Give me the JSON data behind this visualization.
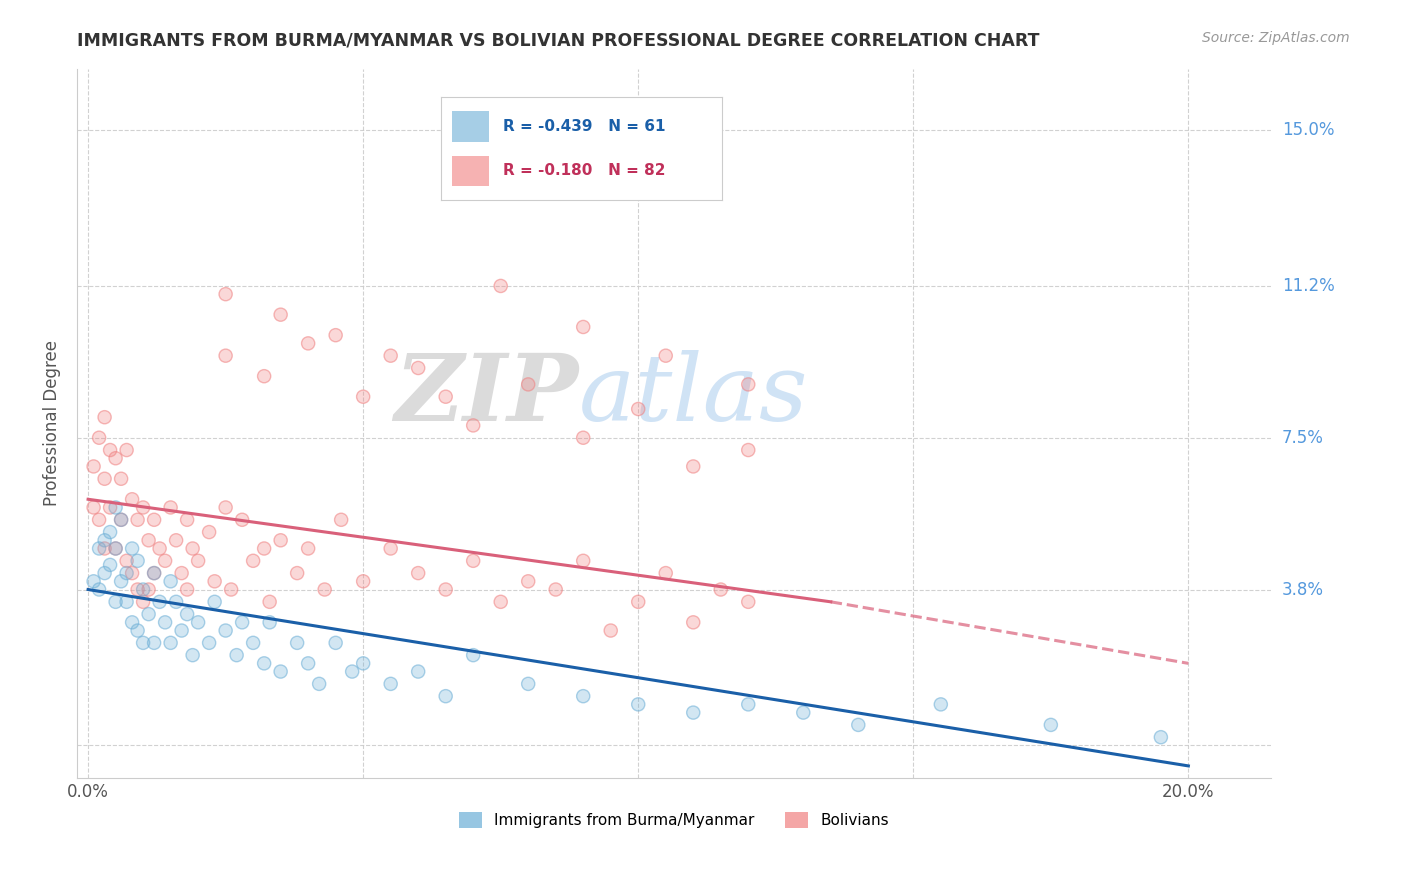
{
  "title": "IMMIGRANTS FROM BURMA/MYANMAR VS BOLIVIAN PROFESSIONAL DEGREE CORRELATION CHART",
  "source": "Source: ZipAtlas.com",
  "ylabel": "Professional Degree",
  "legend_entries": [
    {
      "label": "R = -0.439   N = 61",
      "color": "#6baed6"
    },
    {
      "label": "R = -0.180   N = 82",
      "color": "#f08080"
    }
  ],
  "xlim": [
    -0.002,
    0.215
  ],
  "ylim": [
    -0.008,
    0.165
  ],
  "blue_color": "#6baed6",
  "pink_color": "#f08080",
  "blue_line_color": "#1a5fa8",
  "pink_line_color": "#d9607a",
  "grid_color": "#cccccc",
  "background_color": "#ffffff",
  "right_label_color": "#5599dd",
  "blue_trend": {
    "x_start": 0.0,
    "x_end": 0.2,
    "y_start": 0.038,
    "y_end": -0.005
  },
  "pink_trend_solid": {
    "x_start": 0.0,
    "x_end": 0.135,
    "y_start": 0.06,
    "y_end": 0.035
  },
  "pink_trend_dash": {
    "x_start": 0.135,
    "x_end": 0.2,
    "y_start": 0.035,
    "y_end": 0.02
  },
  "scatter_blue_x": [
    0.001,
    0.002,
    0.002,
    0.003,
    0.003,
    0.004,
    0.004,
    0.005,
    0.005,
    0.005,
    0.006,
    0.006,
    0.007,
    0.007,
    0.008,
    0.008,
    0.009,
    0.009,
    0.01,
    0.01,
    0.011,
    0.012,
    0.012,
    0.013,
    0.014,
    0.015,
    0.015,
    0.016,
    0.017,
    0.018,
    0.019,
    0.02,
    0.022,
    0.023,
    0.025,
    0.027,
    0.028,
    0.03,
    0.032,
    0.033,
    0.035,
    0.038,
    0.04,
    0.042,
    0.045,
    0.048,
    0.05,
    0.055,
    0.06,
    0.065,
    0.07,
    0.08,
    0.09,
    0.1,
    0.11,
    0.12,
    0.13,
    0.14,
    0.155,
    0.175,
    0.195
  ],
  "scatter_blue_y": [
    0.04,
    0.048,
    0.038,
    0.05,
    0.042,
    0.052,
    0.044,
    0.058,
    0.048,
    0.035,
    0.055,
    0.04,
    0.042,
    0.035,
    0.048,
    0.03,
    0.045,
    0.028,
    0.038,
    0.025,
    0.032,
    0.042,
    0.025,
    0.035,
    0.03,
    0.04,
    0.025,
    0.035,
    0.028,
    0.032,
    0.022,
    0.03,
    0.025,
    0.035,
    0.028,
    0.022,
    0.03,
    0.025,
    0.02,
    0.03,
    0.018,
    0.025,
    0.02,
    0.015,
    0.025,
    0.018,
    0.02,
    0.015,
    0.018,
    0.012,
    0.022,
    0.015,
    0.012,
    0.01,
    0.008,
    0.01,
    0.008,
    0.005,
    0.01,
    0.005,
    0.002
  ],
  "scatter_pink_x": [
    0.001,
    0.001,
    0.002,
    0.002,
    0.003,
    0.003,
    0.003,
    0.004,
    0.004,
    0.005,
    0.005,
    0.006,
    0.006,
    0.007,
    0.007,
    0.008,
    0.008,
    0.009,
    0.009,
    0.01,
    0.01,
    0.011,
    0.011,
    0.012,
    0.012,
    0.013,
    0.014,
    0.015,
    0.016,
    0.017,
    0.018,
    0.018,
    0.019,
    0.02,
    0.022,
    0.023,
    0.025,
    0.026,
    0.028,
    0.03,
    0.032,
    0.033,
    0.035,
    0.038,
    0.04,
    0.043,
    0.046,
    0.05,
    0.055,
    0.06,
    0.065,
    0.07,
    0.075,
    0.08,
    0.085,
    0.09,
    0.095,
    0.1,
    0.105,
    0.11,
    0.115,
    0.12,
    0.025,
    0.032,
    0.04,
    0.05,
    0.06,
    0.07,
    0.08,
    0.09,
    0.1,
    0.11,
    0.12,
    0.025,
    0.035,
    0.045,
    0.055,
    0.065,
    0.075,
    0.09,
    0.105,
    0.12
  ],
  "scatter_pink_y": [
    0.058,
    0.068,
    0.055,
    0.075,
    0.065,
    0.08,
    0.048,
    0.072,
    0.058,
    0.07,
    0.048,
    0.065,
    0.055,
    0.072,
    0.045,
    0.06,
    0.042,
    0.055,
    0.038,
    0.058,
    0.035,
    0.05,
    0.038,
    0.055,
    0.042,
    0.048,
    0.045,
    0.058,
    0.05,
    0.042,
    0.055,
    0.038,
    0.048,
    0.045,
    0.052,
    0.04,
    0.058,
    0.038,
    0.055,
    0.045,
    0.048,
    0.035,
    0.05,
    0.042,
    0.048,
    0.038,
    0.055,
    0.04,
    0.048,
    0.042,
    0.038,
    0.045,
    0.035,
    0.04,
    0.038,
    0.045,
    0.028,
    0.035,
    0.042,
    0.03,
    0.038,
    0.035,
    0.095,
    0.09,
    0.098,
    0.085,
    0.092,
    0.078,
    0.088,
    0.075,
    0.082,
    0.068,
    0.072,
    0.11,
    0.105,
    0.1,
    0.095,
    0.085,
    0.112,
    0.102,
    0.095,
    0.088
  ]
}
